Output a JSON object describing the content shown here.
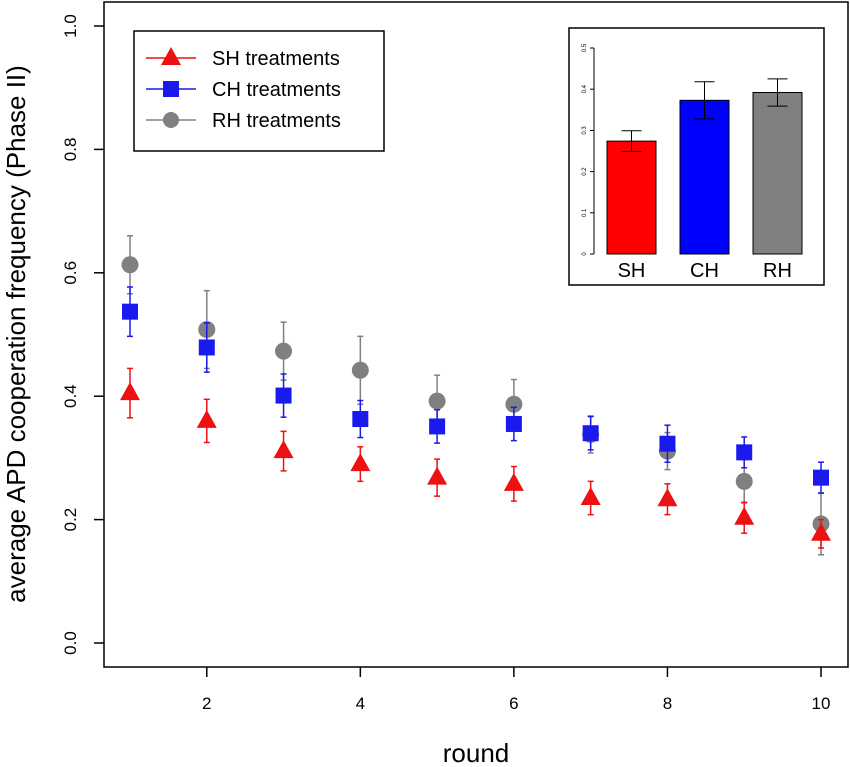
{
  "chart_data": [
    {
      "type": "scatter",
      "xlabel": "round",
      "ylabel": "average  APD  cooperation  frequency  (Phase II)",
      "xlim": [
        1,
        10
      ],
      "ylim": [
        0,
        1
      ],
      "xticks": [
        "2",
        "4",
        "6",
        "8",
        "10"
      ],
      "yticks": [
        "0.0",
        "0.2",
        "0.4",
        "0.6",
        "0.8",
        "1.0"
      ],
      "legend": {
        "position": "top-left"
      },
      "series": [
        {
          "name": "SH treatments",
          "marker": "triangle",
          "color": "#ee1111",
          "x": [
            1,
            2,
            3,
            4,
            5,
            6,
            7,
            8,
            9,
            10
          ],
          "y": [
            0.405,
            0.36,
            0.311,
            0.29,
            0.268,
            0.258,
            0.235,
            0.233,
            0.203,
            0.177
          ],
          "err": [
            0.04,
            0.035,
            0.032,
            0.028,
            0.03,
            0.028,
            0.027,
            0.025,
            0.025,
            0.023
          ]
        },
        {
          "name": "CH treatments",
          "marker": "square",
          "color": "#1a1aee",
          "x": [
            1,
            2,
            3,
            4,
            5,
            6,
            7,
            8,
            9,
            10
          ],
          "y": [
            0.537,
            0.479,
            0.401,
            0.363,
            0.351,
            0.355,
            0.34,
            0.323,
            0.309,
            0.268
          ],
          "err": [
            0.04,
            0.04,
            0.035,
            0.03,
            0.027,
            0.027,
            0.027,
            0.03,
            0.025,
            0.025
          ]
        },
        {
          "name": "RH treatments",
          "marker": "circle",
          "color": "#808080",
          "x": [
            1,
            2,
            3,
            4,
            5,
            6,
            7,
            8,
            9,
            10
          ],
          "y": [
            0.613,
            0.508,
            0.473,
            0.442,
            0.392,
            0.387,
            0.338,
            0.311,
            0.262,
            0.193
          ],
          "err": [
            0.047,
            0.063,
            0.047,
            0.055,
            0.042,
            0.04,
            0.03,
            0.03,
            0.035,
            0.05
          ]
        }
      ]
    },
    {
      "type": "bar",
      "categories": [
        "SH",
        "CH",
        "RH"
      ],
      "values": [
        0.274,
        0.373,
        0.392
      ],
      "err": [
        0.025,
        0.045,
        0.033
      ],
      "colors": [
        "#ff0000",
        "#0000ff",
        "#808080"
      ],
      "ylim": [
        0,
        0.5
      ],
      "yticks": [
        "0",
        "0.1",
        "0.2",
        "0.3",
        "0.4",
        "0.5"
      ]
    }
  ]
}
